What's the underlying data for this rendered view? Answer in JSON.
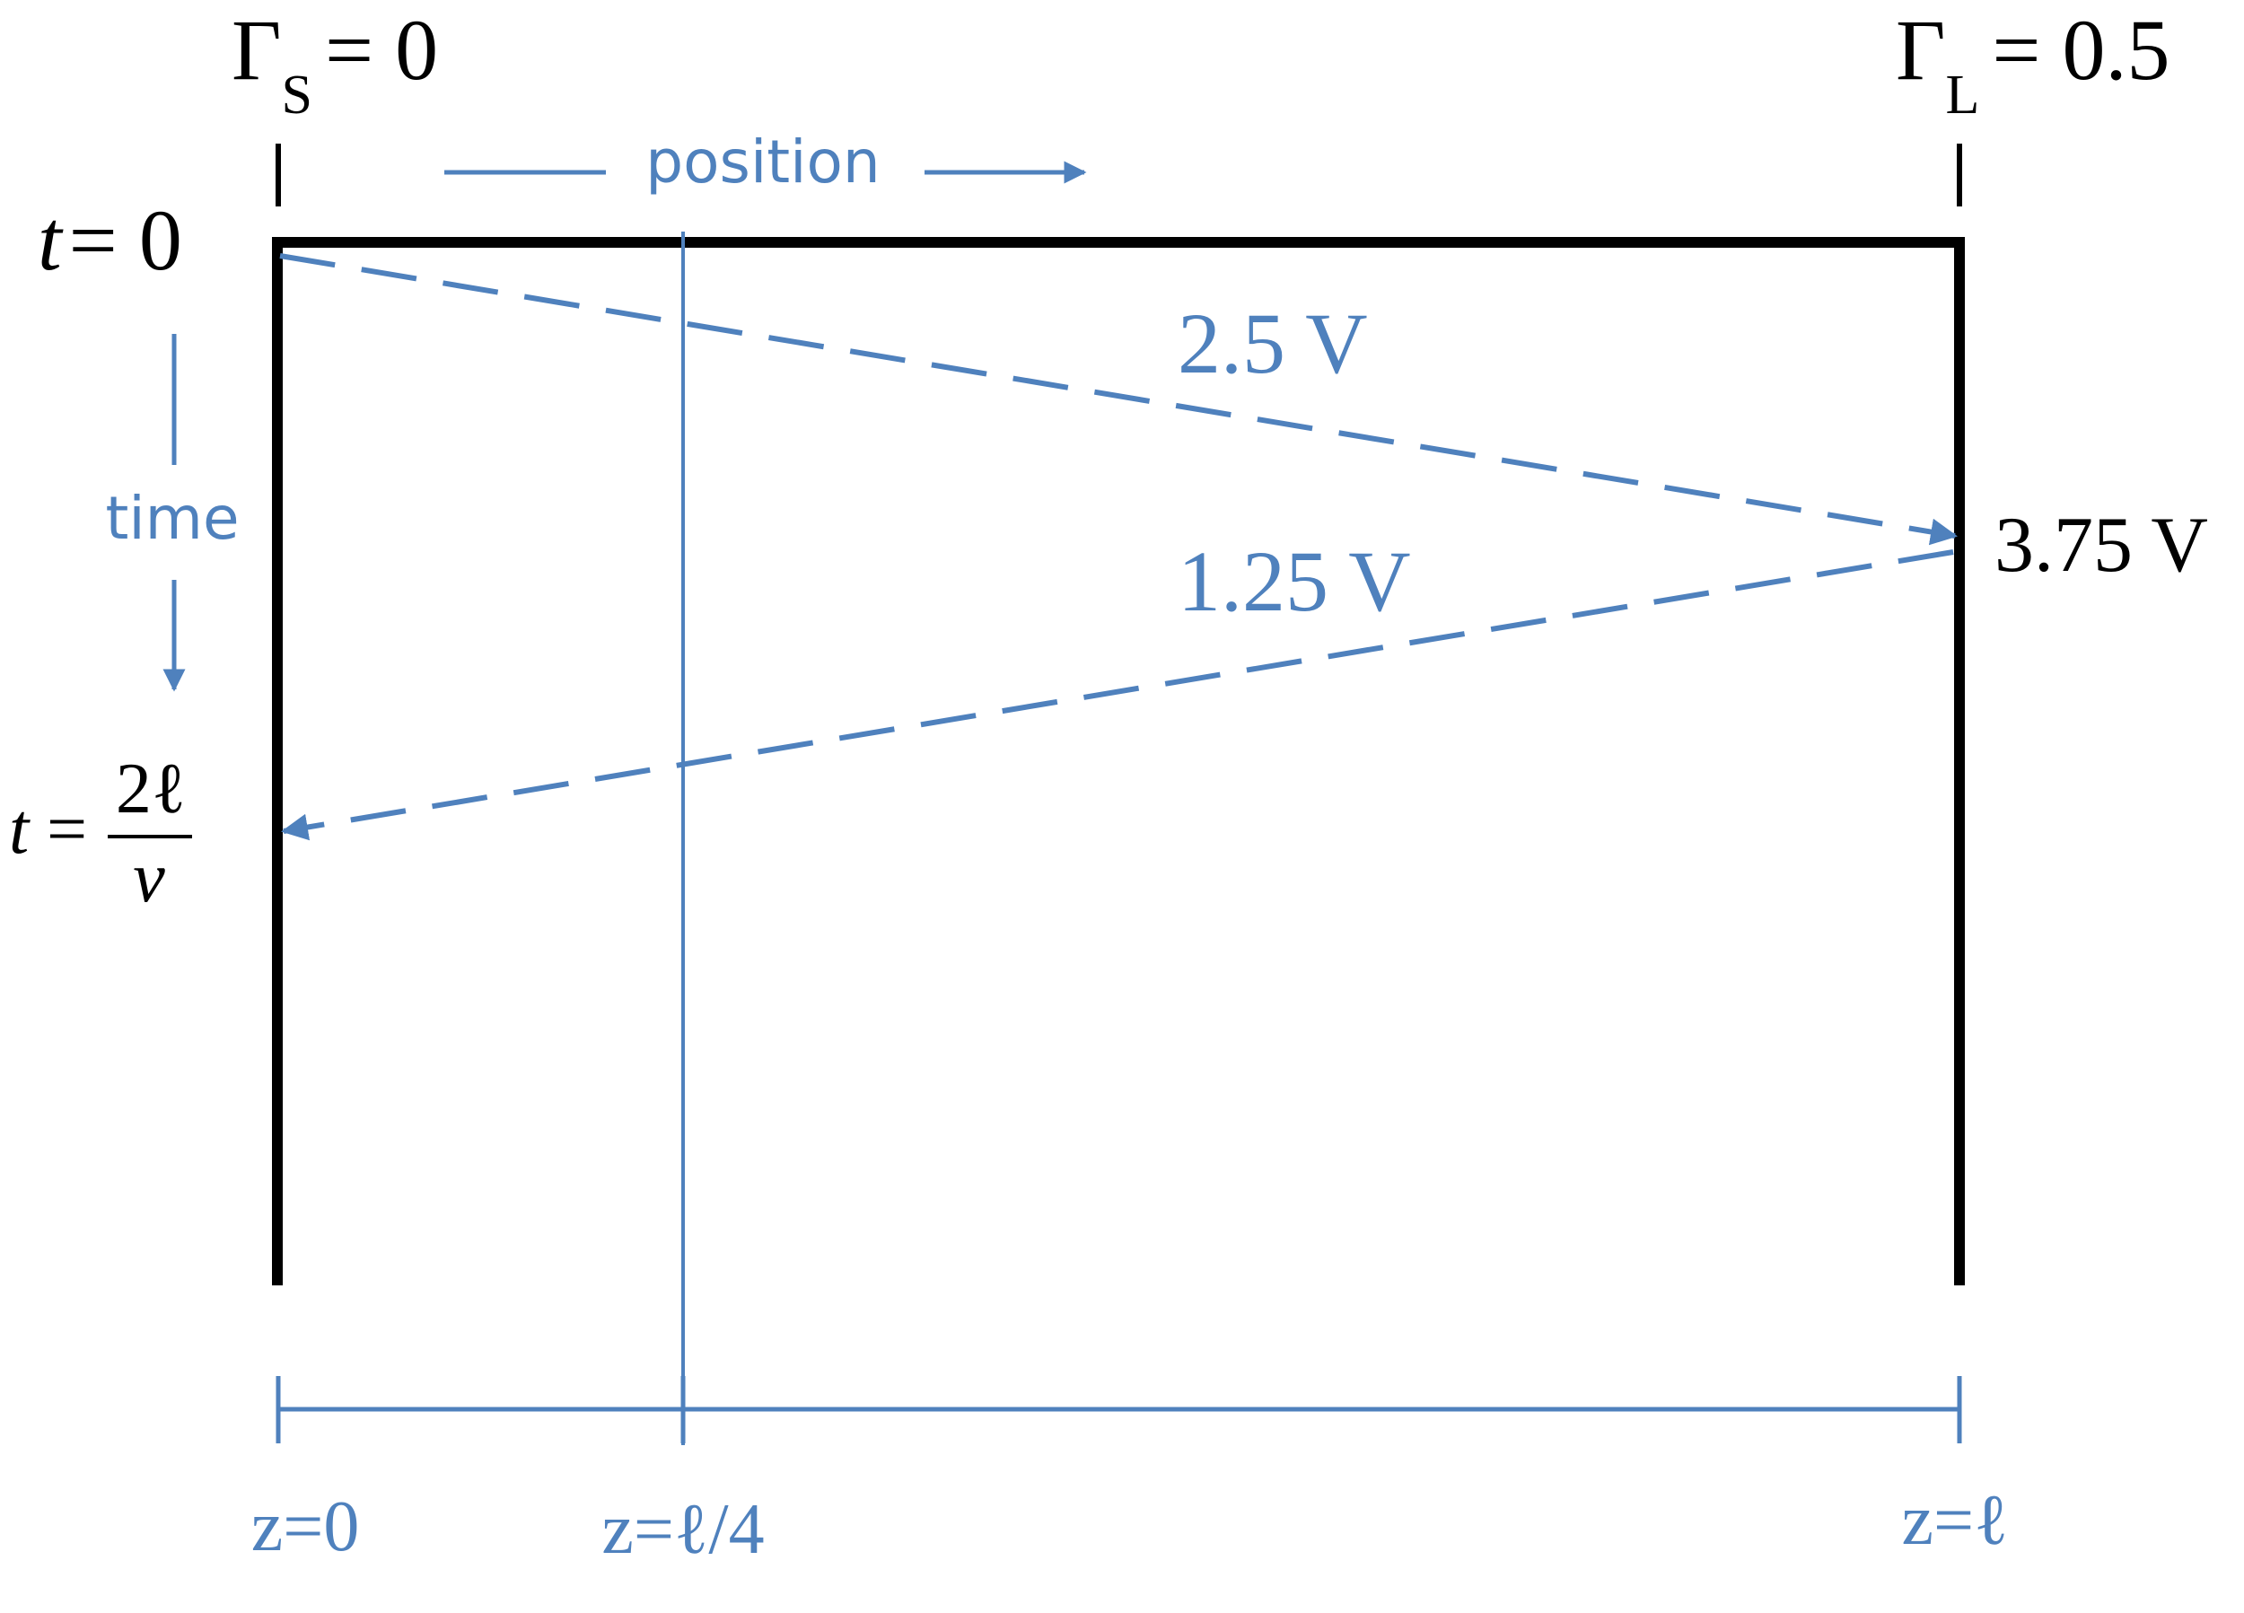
{
  "colors": {
    "line_black": "#000000",
    "accent_blue": "#4f81bd",
    "background": "#ffffff"
  },
  "source": {
    "gamma_symbol": "Γ",
    "gamma_subscript": "S",
    "gamma_value": "= 0"
  },
  "load": {
    "gamma_symbol": "Γ",
    "gamma_subscript": "L",
    "gamma_value": "= 0.5"
  },
  "axes": {
    "position_label": "position",
    "time_label": "time"
  },
  "time_markers": {
    "start_var": "t",
    "start_value": "= 0",
    "end_var": "t",
    "end_equals": "=",
    "end_numerator": "2ℓ",
    "end_denominator": "v"
  },
  "waves": {
    "incident_label": "2.5 V",
    "reflected_label": "1.25 V",
    "load_voltage_label": "3.75 V"
  },
  "positions": {
    "z_start": "z=0",
    "z_quarter": "z=ℓ/4",
    "z_end": "z=ℓ"
  }
}
